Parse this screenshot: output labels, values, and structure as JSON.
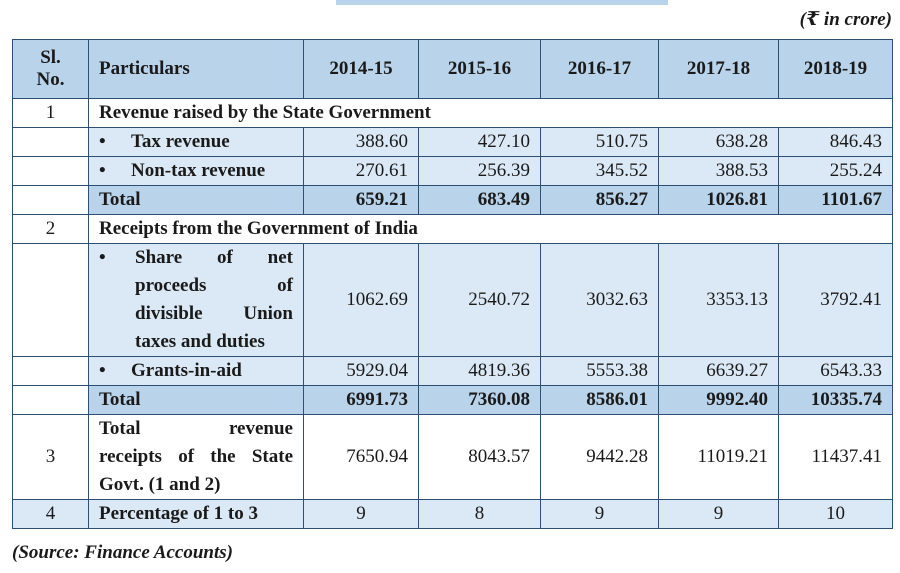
{
  "unit_note": "(₹ in crore)",
  "header": {
    "sl_no": [
      "Sl.",
      "No."
    ],
    "particulars": "Particulars",
    "years": [
      "2014-15",
      "2015-16",
      "2016-17",
      "2017-18",
      "2018-19"
    ]
  },
  "sections": {
    "s1": {
      "sl": "1",
      "title": "Revenue raised by the State Government",
      "bullet": "•",
      "rows": [
        {
          "label": "Tax revenue",
          "values": [
            "388.60",
            "427.10",
            "510.75",
            "638.28",
            "846.43"
          ]
        },
        {
          "label": "Non-tax revenue",
          "values": [
            "270.61",
            "256.39",
            "345.52",
            "388.53",
            "255.24"
          ]
        }
      ],
      "total": {
        "label": "Total",
        "values": [
          "659.21",
          "683.49",
          "856.27",
          "1026.81",
          "1101.67"
        ]
      }
    },
    "s2": {
      "sl": "2",
      "title": "Receipts from the Government of India",
      "bullet": "•",
      "share": {
        "lines": [
          "Share of net",
          "proceeds of",
          "divisible Union",
          "taxes and duties"
        ],
        "values": [
          "1062.69",
          "2540.72",
          "3032.63",
          "3353.13",
          "3792.41"
        ]
      },
      "grants": {
        "label": "Grants-in-aid",
        "values": [
          "5929.04",
          "4819.36",
          "5553.38",
          "6639.27",
          "6543.33"
        ]
      },
      "total": {
        "label": "Total",
        "values": [
          "6991.73",
          "7360.08",
          "8586.01",
          "9992.40",
          "10335.74"
        ]
      }
    },
    "s3": {
      "sl": "3",
      "lines": [
        "Total revenue",
        "receipts of the State",
        "Govt. (1 and 2)"
      ],
      "values": [
        "7650.94",
        "8043.57",
        "9442.28",
        "11019.21",
        "11437.41"
      ]
    },
    "s4": {
      "sl": "4",
      "label": "Percentage of 1 to 3",
      "values": [
        "9",
        "8",
        "9",
        "9",
        "10"
      ]
    }
  },
  "source": "(Source: Finance Accounts)",
  "colors": {
    "header_blue": "#b8d3ea",
    "row_blue": "#dbe9f6",
    "border": "#2d4f73"
  }
}
